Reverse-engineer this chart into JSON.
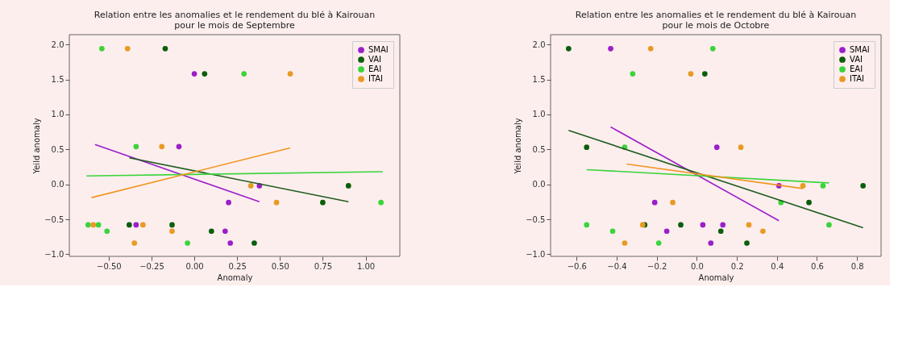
{
  "chart_data": [
    {
      "type": "scatter",
      "title": "Relation entre les anomalies et le rendement du blé à Kairouan\npour le mois de Septembre",
      "xlabel": "Anomaly",
      "ylabel": "Yeild anomaly",
      "xlim": [
        -0.73,
        1.2
      ],
      "ylim": [
        -1.03,
        2.14
      ],
      "xticks": [
        {
          "value": -0.5,
          "label": "−0.50"
        },
        {
          "value": -0.25,
          "label": "−0.25"
        },
        {
          "value": 0,
          "label": "0.00"
        },
        {
          "value": 0.25,
          "label": "0.25"
        },
        {
          "value": 0.5,
          "label": "0.50"
        },
        {
          "value": 0.75,
          "label": "0.75"
        },
        {
          "value": 1.0,
          "label": "1.00"
        }
      ],
      "yticks": [
        {
          "value": -1,
          "label": "−1.0"
        },
        {
          "value": -0.5,
          "label": "−0.5"
        },
        {
          "value": 0,
          "label": "0.0"
        },
        {
          "value": 0.5,
          "label": "0.5"
        },
        {
          "value": 1,
          "label": "1.0"
        },
        {
          "value": 1.5,
          "label": "1.5"
        },
        {
          "value": 2,
          "label": "2.0"
        }
      ],
      "legend": "top right",
      "marker": "circle",
      "series": [
        {
          "name": "SMAI",
          "color": "#9b1fc8",
          "x": [
            0.0,
            -0.09,
            -0.34,
            0.2,
            0.18,
            0.21,
            0.38
          ],
          "values": [
            1.58,
            0.54,
            -0.58,
            -0.26,
            -0.67,
            -0.84,
            -0.02
          ]
        },
        {
          "name": "VAI",
          "color": "#0b5e0b",
          "x": [
            -0.17,
            0.06,
            -0.38,
            -0.13,
            0.1,
            0.9,
            0.75,
            0.35
          ],
          "values": [
            1.94,
            1.58,
            -0.58,
            -0.58,
            -0.67,
            -0.02,
            -0.26,
            -0.84
          ]
        },
        {
          "name": "EAI",
          "color": "#3ad43a",
          "x": [
            -0.54,
            -0.34,
            -0.62,
            -0.56,
            -0.51,
            -0.04,
            0.29,
            1.09
          ],
          "values": [
            1.94,
            0.54,
            -0.58,
            -0.58,
            -0.67,
            -0.84,
            1.58,
            -0.26
          ]
        },
        {
          "name": "ITAI",
          "color": "#e89a22",
          "x": [
            -0.39,
            -0.19,
            -0.59,
            -0.3,
            -0.13,
            -0.35,
            0.56,
            0.33,
            0.48
          ],
          "values": [
            1.94,
            0.54,
            -0.58,
            -0.58,
            -0.67,
            -0.84,
            1.58,
            -0.02,
            -0.26
          ]
        },
        {
          "type": "line",
          "marker": "none",
          "color": "#9b1fc8",
          "x": [
            -0.58,
            0.38
          ],
          "values": [
            0.57,
            -0.25
          ]
        },
        {
          "type": "line",
          "marker": "none",
          "color": "#1f5c1f",
          "x": [
            -0.38,
            0.9
          ],
          "values": [
            0.38,
            -0.25
          ]
        },
        {
          "type": "line",
          "marker": "none",
          "color": "#3ad43a",
          "x": [
            -0.63,
            1.1
          ],
          "values": [
            0.12,
            0.18
          ]
        },
        {
          "type": "line",
          "marker": "none",
          "color": "#f0961e",
          "x": [
            -0.6,
            0.56
          ],
          "values": [
            -0.19,
            0.52
          ]
        }
      ]
    },
    {
      "type": "scatter",
      "title": "Relation entre les anomalies et le rendement du blé à Kairouan\npour le mois de Octobre",
      "xlabel": "Anomaly",
      "ylabel": "Yeild anomaly",
      "xlim": [
        -0.73,
        0.92
      ],
      "ylim": [
        -1.03,
        2.14
      ],
      "xticks": [
        {
          "value": -0.6,
          "label": "−0.6"
        },
        {
          "value": -0.4,
          "label": "−0.4"
        },
        {
          "value": -0.2,
          "label": "−0.2"
        },
        {
          "value": 0,
          "label": "0.0"
        },
        {
          "value": 0.2,
          "label": "0.2"
        },
        {
          "value": 0.4,
          "label": "0.4"
        },
        {
          "value": 0.6,
          "label": "0.6"
        },
        {
          "value": 0.8,
          "label": "0.8"
        }
      ],
      "yticks": [
        {
          "value": -1,
          "label": "−1.0"
        },
        {
          "value": -0.5,
          "label": "−0.5"
        },
        {
          "value": 0,
          "label": "0.0"
        },
        {
          "value": 0.5,
          "label": "0.5"
        },
        {
          "value": 1,
          "label": "1.0"
        },
        {
          "value": 1.5,
          "label": "1.5"
        },
        {
          "value": 2,
          "label": "2.0"
        }
      ],
      "legend": "top right",
      "marker": "circle",
      "series": [
        {
          "name": "SMAI",
          "color": "#9b1fc8",
          "x": [
            -0.43,
            -0.21,
            -0.15,
            0.1,
            0.03,
            0.13,
            0.07,
            0.41
          ],
          "values": [
            1.94,
            -0.26,
            -0.67,
            0.53,
            -0.58,
            -0.58,
            -0.84,
            -0.02
          ]
        },
        {
          "name": "VAI",
          "color": "#0b5e0b",
          "x": [
            -0.64,
            -0.55,
            -0.26,
            -0.08,
            0.04,
            0.12,
            0.25,
            0.56,
            0.83
          ],
          "values": [
            1.94,
            0.53,
            -0.58,
            -0.58,
            1.58,
            -0.67,
            -0.84,
            -0.26,
            -0.02
          ]
        },
        {
          "name": "EAI",
          "color": "#3ad43a",
          "x": [
            -0.32,
            -0.36,
            -0.55,
            -0.42,
            -0.19,
            0.08,
            0.42,
            0.63,
            0.66
          ],
          "values": [
            1.58,
            0.53,
            -0.58,
            -0.67,
            -0.84,
            1.94,
            -0.26,
            -0.02,
            -0.58
          ]
        },
        {
          "name": "ITAI",
          "color": "#e89a22",
          "x": [
            -0.23,
            -0.03,
            -0.12,
            -0.27,
            -0.36,
            0.22,
            0.26,
            0.33,
            0.53
          ],
          "values": [
            1.94,
            1.58,
            -0.26,
            -0.58,
            -0.84,
            0.53,
            -0.58,
            -0.67,
            -0.02
          ]
        },
        {
          "type": "line",
          "marker": "none",
          "color": "#9b1fc8",
          "x": [
            -0.43,
            0.41
          ],
          "values": [
            0.82,
            -0.52
          ]
        },
        {
          "type": "line",
          "marker": "none",
          "color": "#1f5c1f",
          "x": [
            -0.64,
            0.83
          ],
          "values": [
            0.77,
            -0.62
          ]
        },
        {
          "type": "line",
          "marker": "none",
          "color": "#3ad43a",
          "x": [
            -0.55,
            0.66
          ],
          "values": [
            0.21,
            0.02
          ]
        },
        {
          "type": "line",
          "marker": "none",
          "color": "#f0961e",
          "x": [
            -0.35,
            0.53
          ],
          "values": [
            0.29,
            -0.06
          ]
        }
      ]
    }
  ]
}
